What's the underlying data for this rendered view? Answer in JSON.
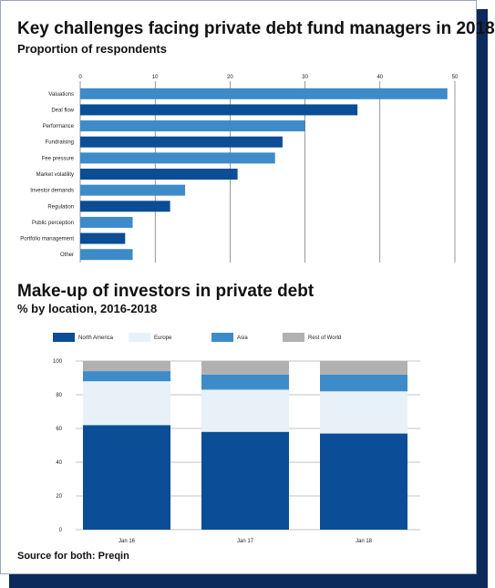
{
  "source": "Source for both: Preqin",
  "chart_data": [
    {
      "type": "bar",
      "orientation": "horizontal",
      "title": "Key challenges facing private debt fund managers in 2018",
      "subtitle": "Proportion of respondents",
      "categories": [
        "Valuations",
        "Deal flow",
        "Performance",
        "Fundraising",
        "Fee pressure",
        "Market volatility",
        "Investor demands",
        "Regulation",
        "Public perception",
        "Portfolio management",
        "Other"
      ],
      "values": [
        49,
        37,
        30,
        27,
        26,
        21,
        14,
        12,
        7,
        6,
        7
      ],
      "xlim": [
        0,
        50
      ],
      "xticks": [
        0,
        10,
        20,
        30,
        40,
        50
      ],
      "xaxis_position": "top",
      "grid": true,
      "colors": [
        "#3d8bc8",
        "#0b4d96"
      ]
    },
    {
      "type": "bar",
      "stacked": true,
      "title": "Make-up of investors in private debt",
      "subtitle": "% by location, 2016-2018",
      "categories": [
        "Jan 16",
        "Jan 17",
        "Jan 18"
      ],
      "series": [
        {
          "name": "North America",
          "values": [
            62,
            58,
            57
          ],
          "color": "#0b4d96"
        },
        {
          "name": "Europe",
          "values": [
            26,
            25,
            25
          ],
          "color": "#e8f1f8"
        },
        {
          "name": "Asia",
          "values": [
            6,
            9,
            10
          ],
          "color": "#3d8bc8"
        },
        {
          "name": "Rest of World",
          "values": [
            6,
            8,
            8
          ],
          "color": "#b1b1b1"
        }
      ],
      "ylim": [
        0,
        100
      ],
      "yticks": [
        0,
        20,
        40,
        60,
        80,
        100
      ],
      "legend": "top",
      "grid": true
    }
  ]
}
